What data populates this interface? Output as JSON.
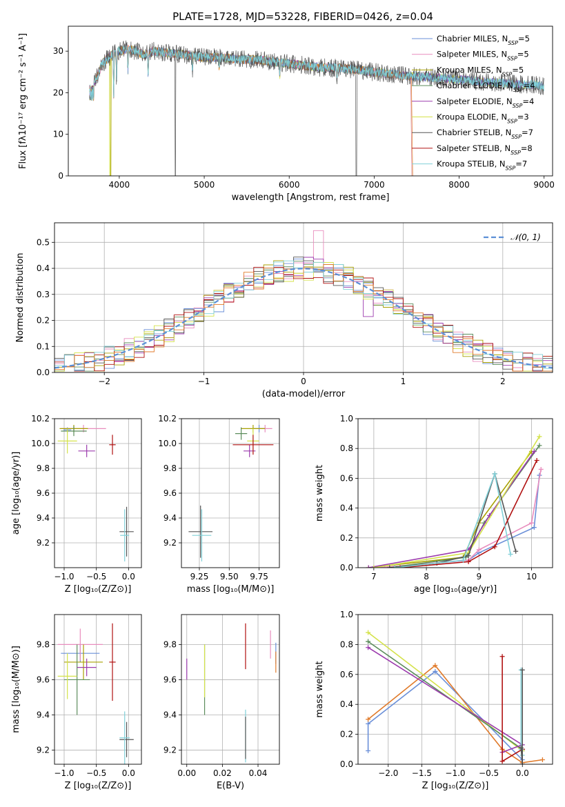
{
  "figure": {
    "title": "PLATE=1728, MJD=53228, FIBERID=0426, z=0.04"
  },
  "colors": {
    "series": [
      "#6a8fd8",
      "#e88cbd",
      "#a8a000",
      "#5b8c5b",
      "#9b3aad",
      "#d4e24a",
      "#555555",
      "#b01010",
      "#80d0d8"
    ],
    "extra": "#e07a2a",
    "dashed": "#5b8fd6",
    "grid": "#b0b0b0"
  },
  "chart_data": [
    {
      "type": "line",
      "id": "spectrum",
      "title": "PLATE=1728, MJD=53228, FIBERID=0426, z=0.04",
      "xlabel": "wavelength [Angstrom, rest frame]",
      "ylabel": "Flux [fλ10⁻¹⁷ erg cm⁻² s⁻¹ A⁻¹]",
      "xlim": [
        3400,
        9100
      ],
      "ylim": [
        0,
        36
      ],
      "xticks": [
        "4000",
        "5000",
        "6000",
        "7000",
        "8000",
        "9000"
      ],
      "yticks": [
        "0",
        "10",
        "20",
        "30"
      ],
      "grid": false,
      "legend_position": "top-right",
      "legend": [
        {
          "name": "Chabrier MILES, N",
          "sub": "SSP",
          "tail": "=5"
        },
        {
          "name": "Salpeter MILES, N",
          "sub": "SSP",
          "tail": "=5"
        },
        {
          "name": "Kroupa MILES, N",
          "sub": "SSP",
          "tail": "=5"
        },
        {
          "name": "Chabrier ELODIE, N",
          "sub": "SSP",
          "tail": "=4"
        },
        {
          "name": "Salpeter ELODIE, N",
          "sub": "SSP",
          "tail": "=4"
        },
        {
          "name": "Kroupa ELODIE, N",
          "sub": "SSP",
          "tail": "=3"
        },
        {
          "name": "Chabrier STELIB, N",
          "sub": "SSP",
          "tail": "=7"
        },
        {
          "name": "Salpeter STELIB, N",
          "sub": "SSP",
          "tail": "=8"
        },
        {
          "name": "Kroupa STELIB, N",
          "sub": "SSP",
          "tail": "=7"
        }
      ],
      "continuum_x": [
        3650,
        3700,
        3800,
        3900,
        4000,
        4100,
        4200,
        4300,
        4400,
        4600,
        4800,
        5000,
        5200,
        5400,
        5600,
        5800,
        6000,
        6200,
        6400,
        6600,
        6800,
        7000,
        7200,
        7400,
        7500,
        7800,
        8100,
        8400,
        8700,
        8900,
        9000
      ],
      "continuum_y": [
        21,
        22,
        27,
        29,
        30,
        30.5,
        30,
        29,
        30,
        29.5,
        29,
        28.5,
        28.5,
        28,
        28,
        27.5,
        27,
        26.5,
        26,
        26,
        25.5,
        25,
        24.5,
        24,
        24,
        23.5,
        23,
        22.5,
        22,
        22,
        21.5
      ]
    },
    {
      "type": "bar",
      "id": "residuals",
      "xlabel": "(data-model)/error",
      "ylabel": "Normed distribution",
      "xlim": [
        -2.5,
        2.5
      ],
      "ylim": [
        0,
        0.575
      ],
      "xticks": [
        "−2",
        "−1",
        "0",
        "1",
        "2"
      ],
      "yticks": [
        "0.0",
        "0.1",
        "0.2",
        "0.3",
        "0.4",
        "0.5"
      ],
      "grid": true,
      "legend_position": "top-right",
      "legend": [
        {
          "name": "𝒩(0, 1)"
        }
      ],
      "bin_width": 0.1,
      "bin_start": -2.5
    },
    {
      "type": "scatter",
      "id": "age-vs-Z",
      "xlabel": "Z [log₁₀(Z/Z⊙)]",
      "ylabel": "age  [log₁₀(age/yr)]",
      "xlim": [
        -1.15,
        0.2
      ],
      "ylim": [
        9.0,
        10.2
      ],
      "xticks": [
        "−1.0",
        "−0.5",
        "0.0"
      ],
      "yticks": [
        "9.2",
        "9.4",
        "9.6",
        "9.8",
        "10.0",
        "10.2"
      ],
      "grid": true,
      "points": [
        {
          "s": 0,
          "x": -0.95,
          "y": 10.11,
          "xe": 0.06,
          "ye": 0.02
        },
        {
          "s": 1,
          "x": -0.7,
          "y": 10.12,
          "xe": 0.35,
          "ye": 0.03
        },
        {
          "s": 2,
          "x": -0.85,
          "y": 10.12,
          "xe": 0.22,
          "ye": 0.03
        },
        {
          "s": 3,
          "x": -0.85,
          "y": 10.1,
          "xe": 0.2,
          "ye": 0.04
        },
        {
          "s": 4,
          "x": -0.65,
          "y": 9.94,
          "xe": 0.13,
          "ye": 0.05
        },
        {
          "s": 5,
          "x": -0.95,
          "y": 10.02,
          "xe": 0.15,
          "ye": 0.1
        },
        {
          "s": 6,
          "x": -0.03,
          "y": 9.29,
          "xe": 0.11,
          "ye": 0.2
        },
        {
          "s": 7,
          "x": -0.25,
          "y": 9.99,
          "xe": 0.05,
          "ye": 0.08
        },
        {
          "s": 8,
          "x": -0.06,
          "y": 9.26,
          "xe": 0.07,
          "ye": 0.21
        }
      ]
    },
    {
      "type": "scatter",
      "id": "age-vs-mass",
      "xlabel": "mass [log₁₀(M/M⊙)]",
      "ylabel": "",
      "xlim": [
        9.1,
        9.92
      ],
      "ylim": [
        9.0,
        10.2
      ],
      "xticks": [
        "9.25",
        "9.50",
        "9.75"
      ],
      "yticks": [
        "9.2",
        "9.4",
        "9.6",
        "9.8",
        "10.0",
        "10.2"
      ],
      "grid": true,
      "points": [
        {
          "s": 0,
          "x": 9.75,
          "y": 10.12,
          "xe": 0.05,
          "ye": 0.03
        },
        {
          "s": 1,
          "x": 9.8,
          "y": 10.12,
          "xe": 0.06,
          "ye": 0.03
        },
        {
          "s": 2,
          "x": 9.7,
          "y": 10.12,
          "xe": 0.1,
          "ye": 0.03
        },
        {
          "s": 3,
          "x": 9.6,
          "y": 10.08,
          "xe": 0.05,
          "ye": 0.05
        },
        {
          "s": 4,
          "x": 9.67,
          "y": 9.94,
          "xe": 0.05,
          "ye": 0.05
        },
        {
          "s": 5,
          "x": 9.7,
          "y": 10.02,
          "xe": 0.05,
          "ye": 0.1
        },
        {
          "s": 6,
          "x": 9.26,
          "y": 9.29,
          "xe": 0.1,
          "ye": 0.21
        },
        {
          "s": 7,
          "x": 9.7,
          "y": 9.99,
          "xe": 0.17,
          "ye": 0.08
        },
        {
          "s": 8,
          "x": 9.27,
          "y": 9.26,
          "xe": 0.08,
          "ye": 0.21
        }
      ]
    },
    {
      "type": "line",
      "id": "massweight-vs-age",
      "xlabel": "age  [log₁₀(age/yr)]",
      "ylabel": "mass weight",
      "xlim": [
        6.7,
        10.4
      ],
      "ylim": [
        0,
        1.0
      ],
      "xticks": [
        "7",
        "8",
        "9",
        "10"
      ],
      "yticks": [
        "0.0",
        "0.2",
        "0.4",
        "0.6",
        "0.8",
        "1.0"
      ],
      "grid": true,
      "series": [
        {
          "s": 0,
          "x": [
            7.2,
            8.8,
            9.0,
            10.05,
            10.15
          ],
          "y": [
            0.0,
            0.05,
            0.1,
            0.27,
            0.62
          ]
        },
        {
          "s": 1,
          "x": [
            7.1,
            8.8,
            9.0,
            10.0,
            10.18
          ],
          "y": [
            0.0,
            0.05,
            0.12,
            0.3,
            0.66
          ]
        },
        {
          "s": 2,
          "x": [
            6.9,
            8.7,
            9.0,
            10.0
          ],
          "y": [
            0.0,
            0.07,
            0.3,
            0.78
          ]
        },
        {
          "s": 3,
          "x": [
            7.3,
            8.75,
            9.1,
            10.15
          ],
          "y": [
            0.0,
            0.07,
            0.3,
            0.82
          ]
        },
        {
          "s": 4,
          "x": [
            6.9,
            8.8,
            9.2,
            10.05
          ],
          "y": [
            0.0,
            0.12,
            0.35,
            0.78
          ]
        },
        {
          "s": 5,
          "x": [
            7.0,
            8.8,
            10.15
          ],
          "y": [
            0.0,
            0.1,
            0.88
          ]
        },
        {
          "s": 6,
          "x": [
            7.3,
            8.2,
            8.8,
            9.3,
            9.7
          ],
          "y": [
            0.0,
            0.03,
            0.08,
            0.63,
            0.11
          ]
        },
        {
          "s": 7,
          "x": [
            7.5,
            8.8,
            9.3,
            10.1
          ],
          "y": [
            0.0,
            0.04,
            0.14,
            0.72
          ]
        },
        {
          "s": 8,
          "x": [
            7.4,
            8.7,
            9.3,
            9.6
          ],
          "y": [
            0.0,
            0.05,
            0.63,
            0.09
          ]
        }
      ]
    },
    {
      "type": "scatter",
      "id": "mass-vs-Z",
      "xlabel": "Z [log₁₀(Z/Z⊙)]",
      "ylabel": "mass [log₁₀(M/M⊙)]",
      "xlim": [
        -1.15,
        0.2
      ],
      "ylim": [
        9.12,
        9.97
      ],
      "xticks": [
        "−1.0",
        "−0.5",
        "0.0"
      ],
      "yticks": [
        "9.2",
        "9.4",
        "9.6",
        "9.8"
      ],
      "grid": true,
      "points": [
        {
          "s": 0,
          "x": -0.75,
          "y": 9.75,
          "xe": 0.3,
          "ye": 0.05
        },
        {
          "s": 1,
          "x": -0.75,
          "y": 9.8,
          "xe": 0.35,
          "ye": 0.09
        },
        {
          "s": 2,
          "x": -0.7,
          "y": 9.7,
          "xe": 0.3,
          "ye": 0.1
        },
        {
          "s": 3,
          "x": -0.8,
          "y": 9.6,
          "xe": 0.2,
          "ye": 0.2
        },
        {
          "s": 4,
          "x": -0.65,
          "y": 9.67,
          "xe": 0.15,
          "ye": 0.05
        },
        {
          "s": 5,
          "x": -0.95,
          "y": 9.62,
          "xe": 0.15,
          "ye": 0.13
        },
        {
          "s": 6,
          "x": -0.03,
          "y": 9.26,
          "xe": 0.11,
          "ye": 0.1
        },
        {
          "s": 7,
          "x": -0.25,
          "y": 9.7,
          "xe": 0.05,
          "ye": 0.22
        },
        {
          "s": 8,
          "x": -0.06,
          "y": 9.27,
          "xe": 0.08,
          "ye": 0.15
        }
      ]
    },
    {
      "type": "scatter",
      "id": "mass-vs-EBV",
      "xlabel": "E(B-V)",
      "ylabel": "",
      "xlim": [
        -0.003,
        0.052
      ],
      "ylim": [
        9.12,
        9.97
      ],
      "xticks": [
        "0.00",
        "0.02",
        "0.04"
      ],
      "yticks": [
        "9.2",
        "9.4",
        "9.6",
        "9.8"
      ],
      "grid": true,
      "points": [
        {
          "s": 0,
          "x": 0.05,
          "y": 9.75,
          "xe": 0,
          "ye": 0.06
        },
        {
          "s": 1,
          "x": 0.047,
          "y": 9.8,
          "xe": 0,
          "ye": 0.08
        },
        {
          "s": 4,
          "x": 0.0,
          "y": 9.66,
          "xe": 0,
          "ye": 0.06
        },
        {
          "s": 3,
          "x": 0.01,
          "y": 9.6,
          "xe": 0,
          "ye": 0.2
        },
        {
          "s": 5,
          "x": 0.01,
          "y": 9.65,
          "xe": 0,
          "ye": 0.15
        },
        {
          "s": 7,
          "x": 0.033,
          "y": 9.79,
          "xe": 0,
          "ye": 0.13
        },
        {
          "s": 8,
          "x": 0.033,
          "y": 9.28,
          "xe": 0,
          "ye": 0.15
        },
        {
          "s": 6,
          "x": 0.033,
          "y": 9.27,
          "xe": 0,
          "ye": 0.12
        },
        {
          "s": 9,
          "x": 0.05,
          "y": 9.7,
          "xe": 0,
          "ye": 0.06
        }
      ]
    },
    {
      "type": "line",
      "id": "massweight-vs-Z",
      "xlabel": "Z [log₁₀(Z/Z⊙)]",
      "ylabel": "mass weight",
      "xlim": [
        -2.45,
        0.45
      ],
      "ylim": [
        0,
        1.0
      ],
      "xticks": [
        "−2.0",
        "−1.5",
        "−1.0",
        "−0.5",
        "0.0"
      ],
      "yticks": [
        "0.0",
        "0.2",
        "0.4",
        "0.6",
        "0.8",
        "1.0"
      ],
      "grid": true,
      "series": [
        {
          "s": 0,
          "x": [
            -2.3,
            -2.3,
            -1.3,
            0.0,
            0.0
          ],
          "y": [
            0.09,
            0.27,
            0.62,
            0.03,
            0.09
          ]
        },
        {
          "s": 9,
          "x": [
            -2.3,
            -1.3,
            -0.3,
            0.0,
            0.3
          ],
          "y": [
            0.3,
            0.66,
            0.1,
            0.01,
            0.03
          ]
        },
        {
          "s": 5,
          "x": [
            -2.3,
            0.0
          ],
          "y": [
            0.88,
            0.09
          ]
        },
        {
          "s": 3,
          "x": [
            -2.3,
            0.0
          ],
          "y": [
            0.82,
            0.1
          ]
        },
        {
          "s": 4,
          "x": [
            -2.3,
            0.0,
            -0.3
          ],
          "y": [
            0.78,
            0.13,
            0.08
          ]
        },
        {
          "s": 7,
          "x": [
            -0.3,
            -0.3,
            0.0
          ],
          "y": [
            0.72,
            0.02,
            0.1
          ]
        },
        {
          "s": 8,
          "x": [
            -0.02,
            -0.02,
            0.0
          ],
          "y": [
            0.63,
            0.1,
            0.06
          ]
        },
        {
          "s": 6,
          "x": [
            0.0,
            0.0,
            -0.02
          ],
          "y": [
            0.63,
            0.0,
            0.11
          ]
        }
      ]
    }
  ]
}
